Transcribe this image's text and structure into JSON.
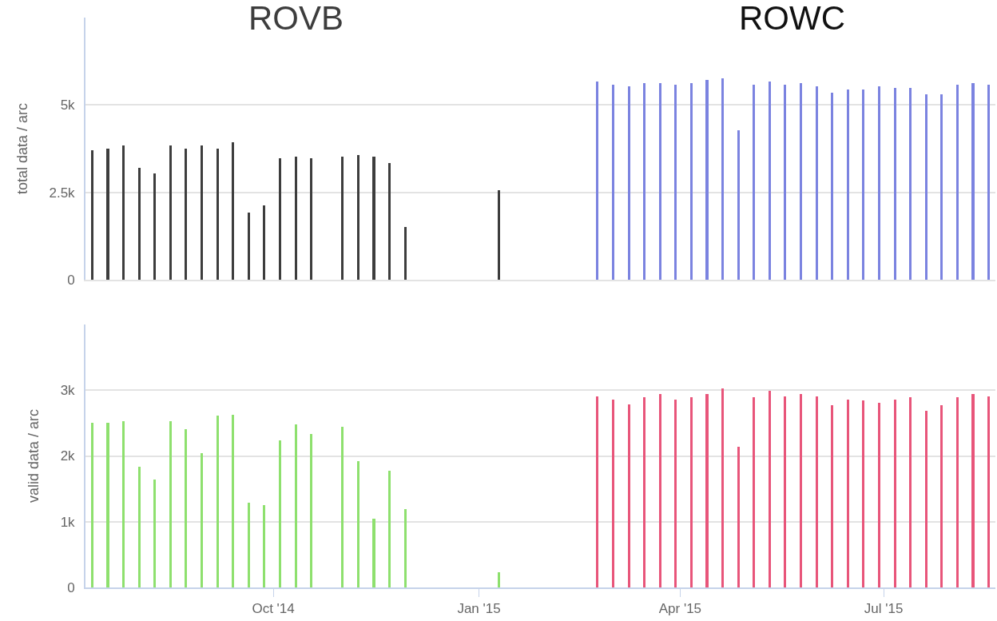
{
  "chart_data": [
    {
      "type": "bar",
      "ylabel": "total data / arc",
      "xlim": [
        "2014-07-09",
        "2015-08-20"
      ],
      "ylim": [
        0,
        7500
      ],
      "yticks": [
        0,
        {
          "value": 2500,
          "label": "2.5k"
        },
        {
          "value": 5000,
          "label": "5k"
        }
      ],
      "grid": "y",
      "legend": false,
      "tick_labels": "y",
      "series": [
        {
          "name": "ROVB",
          "color": "#3d3d3d",
          "x": [
            "2014-07-12",
            "2014-07-19",
            "2014-07-26",
            "2014-08-02",
            "2014-08-09",
            "2014-08-16",
            "2014-08-23",
            "2014-08-30",
            "2014-09-06",
            "2014-09-13",
            "2014-09-20",
            "2014-09-27",
            "2014-10-04",
            "2014-10-11",
            "2014-10-18",
            "2014-11-01",
            "2014-11-08",
            "2014-11-15",
            "2014-11-22",
            "2014-11-29",
            "2015-01-10"
          ],
          "values": [
            3710,
            3750,
            3850,
            3190,
            3050,
            3850,
            3750,
            3850,
            3750,
            3940,
            1930,
            2120,
            3470,
            3520,
            3470,
            3520,
            3570,
            3520,
            3330,
            1510,
            2570
          ]
        },
        {
          "name": "ROWC",
          "color": "#7b83e0",
          "x": [
            "2015-02-23",
            "2015-03-02",
            "2015-03-09",
            "2015-03-16",
            "2015-03-23",
            "2015-03-30",
            "2015-04-06",
            "2015-04-13",
            "2015-04-20",
            "2015-04-27",
            "2015-05-04",
            "2015-05-11",
            "2015-05-18",
            "2015-05-25",
            "2015-06-01",
            "2015-06-08",
            "2015-06-15",
            "2015-06-22",
            "2015-06-29",
            "2015-07-06",
            "2015-07-13",
            "2015-07-20",
            "2015-07-27",
            "2015-08-03",
            "2015-08-10",
            "2015-08-17"
          ],
          "values": [
            5670,
            5580,
            5540,
            5630,
            5630,
            5580,
            5630,
            5720,
            5760,
            4280,
            5580,
            5670,
            5580,
            5630,
            5540,
            5360,
            5450,
            5450,
            5540,
            5490,
            5490,
            5310,
            5310,
            5580,
            5630,
            5580
          ]
        }
      ]
    },
    {
      "type": "bar",
      "ylabel": "valid data / arc",
      "xlim": [
        "2014-07-09",
        "2015-08-20"
      ],
      "xticks": [
        {
          "value": "2014-10-01",
          "label": "Oct '14"
        },
        {
          "value": "2015-01-01",
          "label": "Jan '15"
        },
        {
          "value": "2015-04-01",
          "label": "Apr '15"
        },
        {
          "value": "2015-07-01",
          "label": "Jul '15"
        }
      ],
      "ylim": [
        0,
        4000
      ],
      "yticks": [
        0,
        {
          "value": 1000,
          "label": "1k"
        },
        {
          "value": 2000,
          "label": "2k"
        },
        {
          "value": 3000,
          "label": "3k"
        }
      ],
      "grid": "y",
      "legend": false,
      "series": [
        {
          "color": "#8ee06e",
          "x": [
            "2014-07-12",
            "2014-07-19",
            "2014-07-26",
            "2014-08-02",
            "2014-08-09",
            "2014-08-16",
            "2014-08-23",
            "2014-08-30",
            "2014-09-06",
            "2014-09-13",
            "2014-09-20",
            "2014-09-27",
            "2014-10-04",
            "2014-10-11",
            "2014-10-18",
            "2014-11-01",
            "2014-11-08",
            "2014-11-15",
            "2014-11-22",
            "2014-11-29",
            "2015-01-10"
          ],
          "values": [
            2510,
            2510,
            2530,
            1840,
            1640,
            2530,
            2410,
            2040,
            2610,
            2630,
            1290,
            1250,
            2240,
            2480,
            2340,
            2440,
            1920,
            1050,
            1770,
            1190,
            230
          ]
        },
        {
          "color": "#e8557a",
          "x": [
            "2015-02-23",
            "2015-03-02",
            "2015-03-09",
            "2015-03-16",
            "2015-03-23",
            "2015-03-30",
            "2015-04-06",
            "2015-04-13",
            "2015-04-20",
            "2015-04-27",
            "2015-05-04",
            "2015-05-11",
            "2015-05-18",
            "2015-05-25",
            "2015-06-01",
            "2015-06-08",
            "2015-06-15",
            "2015-06-22",
            "2015-06-29",
            "2015-07-06",
            "2015-07-13",
            "2015-07-20",
            "2015-07-27",
            "2015-08-03",
            "2015-08-10",
            "2015-08-17"
          ],
          "values": [
            2910,
            2860,
            2780,
            2890,
            2940,
            2860,
            2890,
            2940,
            3030,
            2140,
            2890,
            2990,
            2910,
            2940,
            2910,
            2770,
            2860,
            2840,
            2810,
            2860,
            2890,
            2690,
            2770,
            2890,
            2940,
            2910
          ]
        }
      ]
    }
  ]
}
